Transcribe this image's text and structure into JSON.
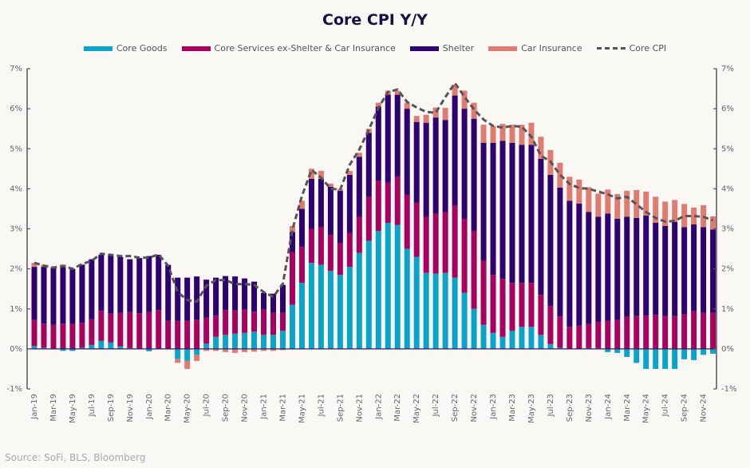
{
  "chart_data": {
    "type": "bar",
    "stacked": true,
    "title": "Core CPI Y/Y",
    "xlabel": "",
    "ylabel": "",
    "ylim": [
      -1,
      7
    ],
    "yticks": [
      "-1%",
      "0%",
      "1%",
      "2%",
      "3%",
      "4%",
      "5%",
      "6%",
      "7%"
    ],
    "ytick_values": [
      -1,
      0,
      1,
      2,
      3,
      4,
      5,
      6,
      7
    ],
    "grid": false,
    "legend_position": "top",
    "source": "Source: SoFi, BLS, Bloomberg",
    "categories": [
      "Jan-19",
      "Feb-19",
      "Mar-19",
      "Apr-19",
      "May-19",
      "Jun-19",
      "Jul-19",
      "Aug-19",
      "Sep-19",
      "Oct-19",
      "Nov-19",
      "Dec-19",
      "Jan-20",
      "Feb-20",
      "Mar-20",
      "Apr-20",
      "May-20",
      "Jun-20",
      "Jul-20",
      "Aug-20",
      "Sep-20",
      "Oct-20",
      "Nov-20",
      "Dec-20",
      "Jan-21",
      "Feb-21",
      "Mar-21",
      "Apr-21",
      "May-21",
      "Jun-21",
      "Jul-21",
      "Aug-21",
      "Sep-21",
      "Oct-21",
      "Nov-21",
      "Dec-21",
      "Jan-22",
      "Feb-22",
      "Mar-22",
      "Apr-22",
      "May-22",
      "Jun-22",
      "Jul-22",
      "Aug-22",
      "Sep-22",
      "Oct-22",
      "Nov-22",
      "Dec-22",
      "Jan-23",
      "Feb-23",
      "Mar-23",
      "Apr-23",
      "May-23",
      "Jun-23",
      "Jul-23",
      "Aug-23",
      "Sep-23",
      "Oct-23",
      "Nov-23",
      "Dec-23",
      "Jan-24",
      "Feb-24",
      "Mar-24",
      "Apr-24",
      "May-24",
      "Jun-24",
      "Jul-24",
      "Aug-24",
      "Sep-24",
      "Oct-24",
      "Nov-24",
      "Dec-24"
    ],
    "xtick_labels": [
      "Jan-19",
      "Mar-19",
      "May-19",
      "Jul-19",
      "Sep-19",
      "Nov-19",
      "Jan-20",
      "Mar-20",
      "May-20",
      "Jul-20",
      "Sep-20",
      "Nov-20",
      "Jan-21",
      "Mar-21",
      "May-21",
      "Jul-21",
      "Sep-21",
      "Nov-21",
      "Jan-22",
      "Mar-22",
      "May-22",
      "Jul-22",
      "Sep-22",
      "Nov-22",
      "Jan-23",
      "Mar-23",
      "May-23",
      "Jul-23",
      "Sep-23",
      "Nov-23",
      "Jan-24",
      "Mar-24",
      "May-24",
      "Jul-24",
      "Sep-24",
      "Nov-24"
    ],
    "series": [
      {
        "name": "Core Goods",
        "color": "#0aa3c9",
        "values": [
          0.07,
          0.03,
          0.0,
          -0.05,
          -0.05,
          0.03,
          0.1,
          0.2,
          0.16,
          0.06,
          0.02,
          0.0,
          -0.06,
          0.0,
          0.0,
          -0.25,
          -0.3,
          -0.15,
          0.13,
          0.3,
          0.35,
          0.38,
          0.4,
          0.43,
          0.35,
          0.35,
          0.45,
          1.1,
          1.65,
          2.15,
          2.1,
          1.95,
          1.85,
          2.05,
          2.4,
          2.7,
          2.95,
          3.15,
          3.1,
          2.5,
          2.3,
          1.9,
          1.88,
          1.9,
          1.78,
          1.4,
          1.0,
          0.6,
          0.4,
          0.3,
          0.45,
          0.55,
          0.55,
          0.35,
          0.12,
          0.03,
          0.0,
          0.0,
          0.02,
          0.02,
          -0.08,
          -0.1,
          -0.2,
          -0.35,
          -0.5,
          -0.5,
          -0.5,
          -0.5,
          -0.26,
          -0.28,
          -0.15,
          -0.12
        ]
      },
      {
        "name": "Core Services ex-Shelter & Car Insurance",
        "color": "#a8005f",
        "values": [
          0.65,
          0.6,
          0.6,
          0.63,
          0.62,
          0.62,
          0.64,
          0.75,
          0.72,
          0.84,
          0.9,
          0.89,
          0.92,
          0.97,
          0.7,
          0.7,
          0.7,
          0.73,
          0.65,
          0.53,
          0.62,
          0.58,
          0.58,
          0.5,
          0.63,
          0.55,
          0.45,
          1.32,
          0.9,
          0.85,
          0.95,
          0.9,
          0.8,
          0.85,
          0.9,
          1.1,
          1.25,
          1.0,
          1.2,
          1.35,
          1.35,
          1.4,
          1.5,
          1.52,
          1.8,
          1.85,
          1.95,
          1.6,
          1.45,
          1.45,
          1.2,
          1.1,
          1.1,
          1.0,
          0.95,
          0.78,
          0.55,
          0.58,
          0.6,
          0.65,
          0.7,
          0.72,
          0.8,
          0.82,
          0.83,
          0.85,
          0.82,
          0.82,
          0.86,
          0.94,
          0.9,
          0.9
        ]
      },
      {
        "name": "Shelter",
        "color": "#2e0070",
        "values": [
          1.33,
          1.42,
          1.42,
          1.43,
          1.38,
          1.45,
          1.5,
          1.4,
          1.45,
          1.4,
          1.32,
          1.38,
          1.4,
          1.38,
          1.4,
          1.08,
          1.08,
          1.08,
          0.95,
          0.95,
          0.85,
          0.85,
          0.78,
          0.75,
          0.42,
          0.48,
          0.7,
          0.5,
          0.95,
          1.25,
          1.2,
          1.2,
          1.3,
          1.45,
          1.5,
          1.6,
          1.85,
          2.2,
          2.05,
          2.15,
          2.02,
          2.35,
          2.4,
          2.3,
          2.75,
          2.75,
          2.8,
          2.95,
          3.3,
          3.45,
          3.5,
          3.45,
          3.45,
          3.4,
          3.28,
          3.22,
          3.15,
          3.05,
          2.8,
          2.63,
          2.68,
          2.53,
          2.5,
          2.45,
          2.5,
          2.3,
          2.25,
          2.35,
          2.18,
          2.17,
          2.14,
          2.08
        ]
      },
      {
        "name": "Car Insurance",
        "color": "#e07b72",
        "values": [
          0.1,
          0.05,
          0.03,
          0.05,
          0.0,
          0.02,
          0.0,
          0.0,
          0.0,
          0.0,
          0.0,
          0.0,
          0.0,
          0.0,
          0.0,
          -0.1,
          -0.2,
          -0.15,
          -0.05,
          -0.05,
          -0.08,
          -0.1,
          -0.08,
          -0.07,
          -0.05,
          -0.05,
          -0.03,
          0.15,
          0.2,
          0.25,
          0.2,
          0.08,
          0.05,
          0.1,
          0.1,
          0.1,
          0.1,
          0.1,
          0.1,
          0.15,
          0.15,
          0.2,
          0.25,
          0.3,
          0.27,
          0.45,
          0.4,
          0.45,
          0.42,
          0.42,
          0.45,
          0.5,
          0.55,
          0.55,
          0.62,
          0.62,
          0.6,
          0.6,
          0.62,
          0.58,
          0.6,
          0.62,
          0.65,
          0.7,
          0.6,
          0.65,
          0.61,
          0.55,
          0.58,
          0.42,
          0.55,
          0.33
        ]
      },
      {
        "name": "Core CPI",
        "color": "#555555",
        "type": "line",
        "dashed": true,
        "values": [
          2.15,
          2.08,
          2.03,
          2.07,
          2.0,
          2.12,
          2.2,
          2.38,
          2.35,
          2.32,
          2.32,
          2.28,
          2.28,
          2.36,
          2.08,
          1.42,
          1.22,
          1.18,
          1.58,
          1.72,
          1.72,
          1.62,
          1.62,
          1.6,
          1.42,
          1.3,
          1.63,
          2.98,
          3.82,
          4.47,
          4.28,
          4.0,
          3.98,
          4.6,
          4.98,
          5.48,
          6.02,
          6.42,
          6.48,
          6.17,
          6.03,
          5.92,
          5.9,
          6.29,
          6.64,
          6.3,
          5.98,
          5.73,
          5.57,
          5.53,
          5.57,
          5.55,
          5.3,
          4.83,
          4.68,
          4.35,
          4.12,
          4.02,
          4.0,
          3.93,
          3.86,
          3.76,
          3.8,
          3.61,
          3.42,
          3.27,
          3.18,
          3.2,
          3.32,
          3.32,
          3.3,
          3.21
        ]
      }
    ]
  }
}
